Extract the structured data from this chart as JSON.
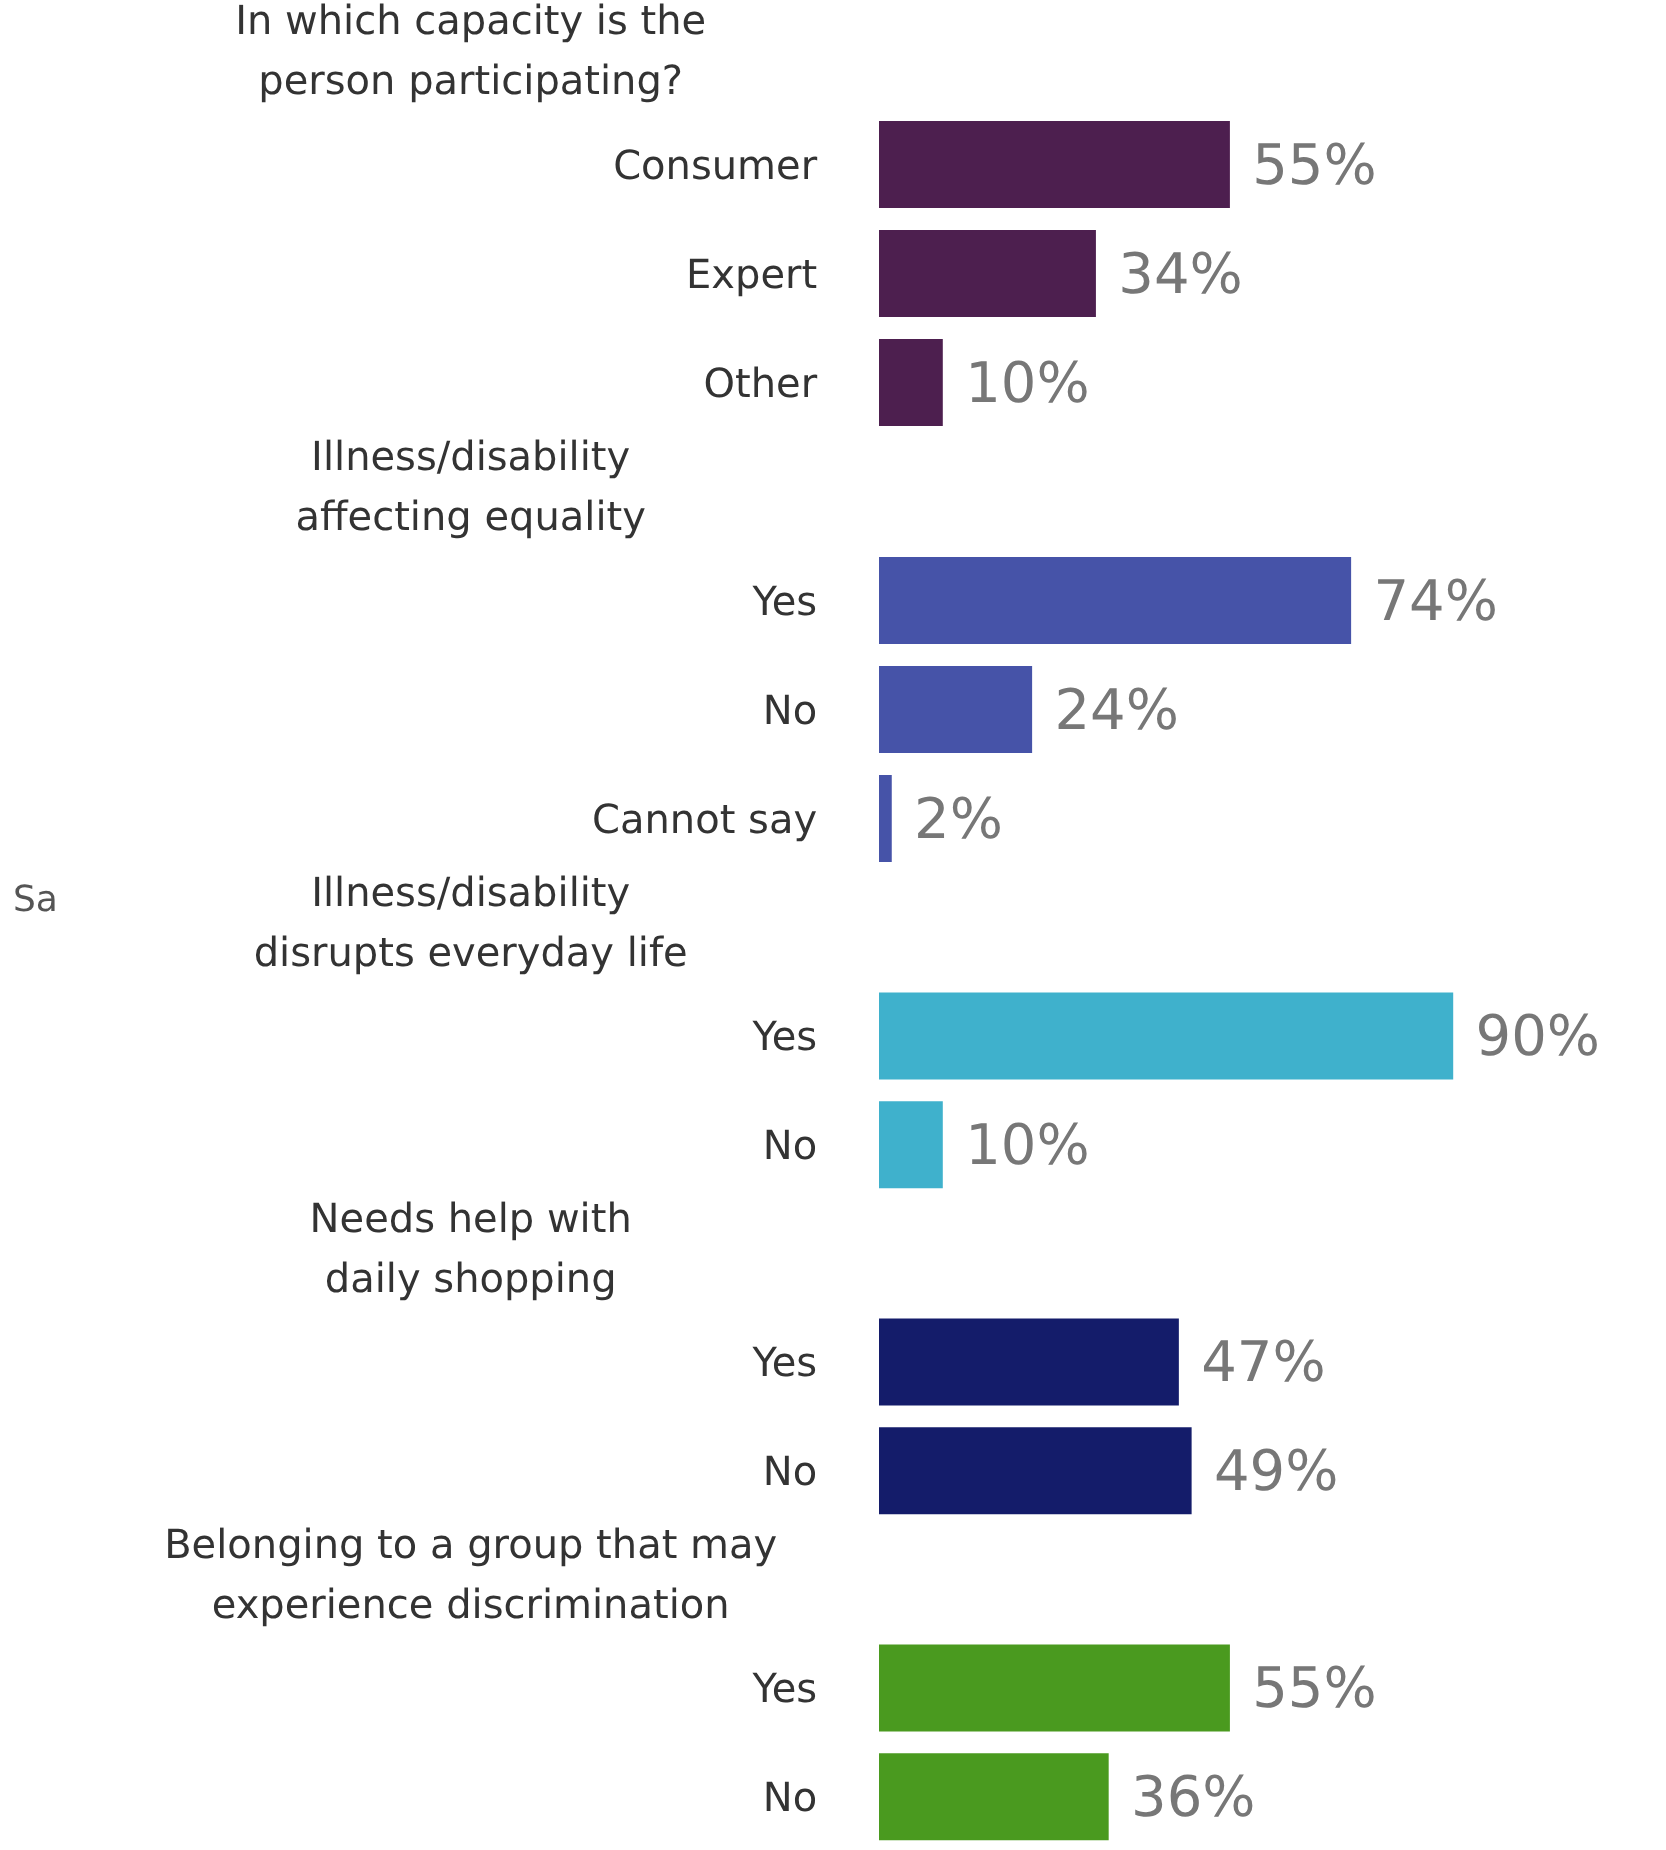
{
  "chart_data": [
    {
      "type": "bar",
      "orientation": "horizontal",
      "title": "In which capacity is the\nperson participating?",
      "categories": [
        "Consumer",
        "Expert",
        "Other"
      ],
      "values": [
        55,
        34,
        10
      ],
      "color": "#4d1f4f",
      "value_labels": [
        "55%",
        "34%",
        "10%"
      ]
    },
    {
      "type": "bar",
      "orientation": "horizontal",
      "title": "Illness/disability\naffecting equality",
      "categories": [
        "Yes",
        "No",
        "Cannot say"
      ],
      "values": [
        74,
        24,
        2
      ],
      "color": "#4653a8",
      "value_labels": [
        "74%",
        "24%",
        "2%"
      ]
    },
    {
      "type": "bar",
      "orientation": "horizontal",
      "title": "Illness/disability\ndisrupts everyday life",
      "categories": [
        "Yes",
        "No"
      ],
      "values": [
        90,
        10
      ],
      "color": "#3fb1cc",
      "value_labels": [
        "90%",
        "10%"
      ],
      "annotations": [
        "Sa"
      ]
    },
    {
      "type": "bar",
      "orientation": "horizontal",
      "title": "Needs help with\ndaily shopping",
      "categories": [
        "Yes",
        "No"
      ],
      "values": [
        47,
        49
      ],
      "color": "#141c6a",
      "value_labels": [
        "47%",
        "49%"
      ]
    },
    {
      "type": "bar",
      "orientation": "horizontal",
      "title": "Belonging to a group that may\nexperience discrimination",
      "categories": [
        "Yes",
        "No"
      ],
      "values": [
        55,
        36
      ],
      "color": "#4a9a1f",
      "value_labels": [
        "55%",
        "36%"
      ]
    }
  ]
}
